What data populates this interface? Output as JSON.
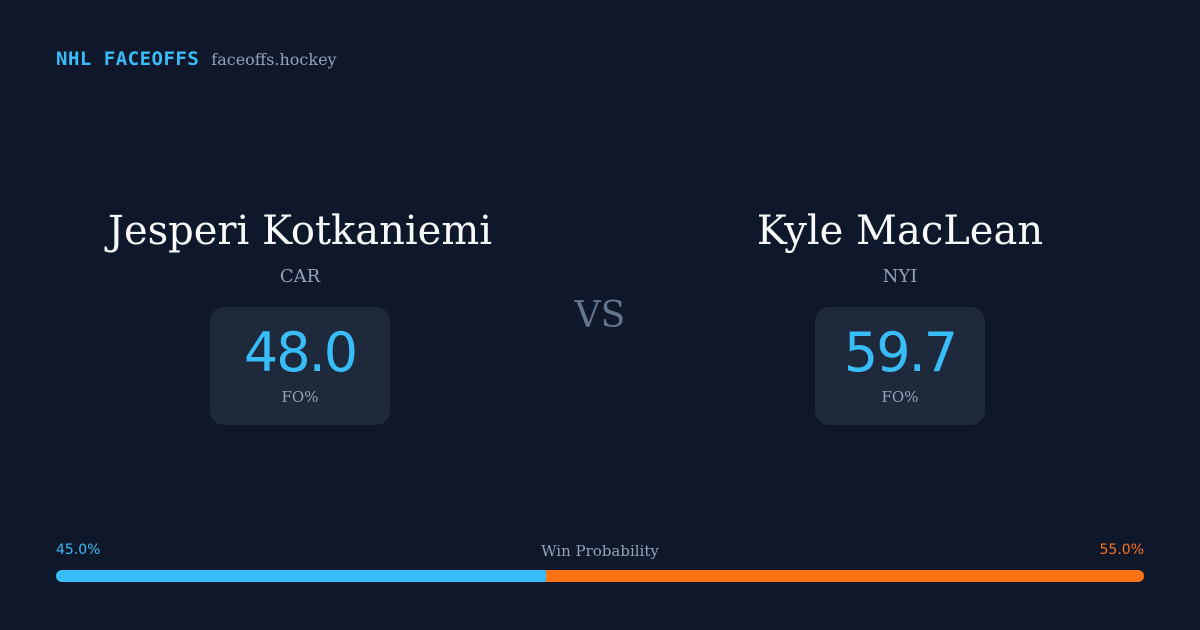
{
  "header": {
    "brand": "NHL FACEOFFS",
    "domain": "faceoffs.hockey"
  },
  "players": [
    {
      "name": "Jesperi Kotkaniemi",
      "team": "CAR",
      "stat_value": "48.0",
      "stat_label": "FO%"
    },
    {
      "name": "Kyle MacLean",
      "team": "NYI",
      "stat_value": "59.7",
      "stat_label": "FO%"
    }
  ],
  "vs_label": "VS",
  "win_probability": {
    "title": "Win Probability",
    "left_label": "45.0%",
    "right_label": "55.0%",
    "left_value": 45.0,
    "right_value": 55.0
  },
  "colors": {
    "background": "#0f172a",
    "card": "#1e293b",
    "accent_left": "#38bdf8",
    "accent_right": "#f97316",
    "muted_text": "#94a3b8"
  }
}
